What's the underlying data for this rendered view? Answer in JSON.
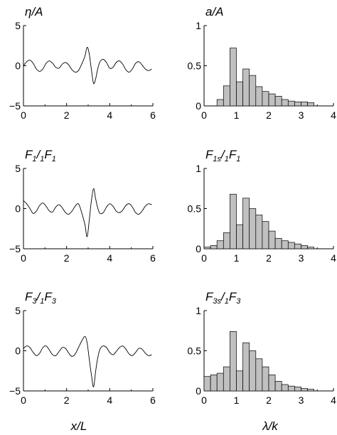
{
  "chart_data": [
    {
      "type": "line",
      "title": {
        "main": "η/A"
      },
      "xlim": [
        0,
        6
      ],
      "ylim": [
        -5,
        5
      ],
      "xticks": [
        "0",
        "2",
        "4",
        "6"
      ],
      "yticks": [
        "5",
        "0",
        "−5"
      ],
      "series": [
        {
          "x": [
            0,
            0.15,
            0.3,
            0.45,
            0.6,
            0.75,
            0.9,
            1.05,
            1.2,
            1.35,
            1.5,
            1.65,
            1.8,
            1.95,
            2.1,
            2.25,
            2.4,
            2.55,
            2.7,
            2.85,
            2.95,
            3.05,
            3.15,
            3.25,
            3.35,
            3.45,
            3.55,
            3.7,
            3.85,
            4.0,
            4.15,
            4.3,
            4.45,
            4.6,
            4.75,
            4.9,
            5.05,
            5.2,
            5.35,
            5.5,
            5.65,
            5.8,
            5.95
          ],
          "y": [
            0,
            0.5,
            0.7,
            0.3,
            -0.4,
            -0.7,
            -0.4,
            0.3,
            0.6,
            0.3,
            -0.2,
            -0.3,
            0.2,
            0.4,
            0.1,
            -0.5,
            -0.8,
            -0.6,
            0.2,
            1.2,
            2.3,
            1.5,
            -0.5,
            -2.2,
            -1.6,
            -0.3,
            0.5,
            0.8,
            0.4,
            -0.3,
            -0.2,
            0.4,
            0.6,
            0.2,
            -0.5,
            -0.8,
            -0.4,
            0.3,
            0.5,
            0.1,
            -0.4,
            -0.6,
            -0.4
          ]
        }
      ]
    },
    {
      "type": "bar",
      "title": {
        "main": "a/A"
      },
      "xlim": [
        0,
        4
      ],
      "ylim": [
        0,
        1
      ],
      "xticks": [
        "0",
        "1",
        "2",
        "3",
        "4"
      ],
      "yticks": [
        "1",
        "0.5",
        "0"
      ],
      "bin_width": 0.2,
      "bins": [
        0.0,
        0.2,
        0.4,
        0.6,
        0.8,
        1.0,
        1.2,
        1.4,
        1.6,
        1.8,
        2.0,
        2.2,
        2.4,
        2.6,
        2.8,
        3.0,
        3.2
      ],
      "values": [
        0,
        0,
        0.08,
        0.25,
        0.72,
        0.3,
        0.46,
        0.38,
        0.24,
        0.18,
        0.15,
        0.12,
        0.08,
        0.06,
        0.05,
        0.05,
        0.04
      ]
    },
    {
      "type": "line",
      "title": {
        "main": "F",
        "sub1": "1",
        "mid": "/",
        "pre2": "1",
        "main2": "F",
        "sub2": "1"
      },
      "xlim": [
        0,
        6
      ],
      "ylim": [
        -5,
        5
      ],
      "xticks": [
        "0",
        "2",
        "4",
        "6"
      ],
      "yticks": [
        "5",
        "0",
        "−5"
      ],
      "series": [
        {
          "x": [
            0,
            0.15,
            0.3,
            0.45,
            0.6,
            0.75,
            0.9,
            1.05,
            1.2,
            1.35,
            1.5,
            1.65,
            1.8,
            1.95,
            2.1,
            2.25,
            2.4,
            2.55,
            2.7,
            2.85,
            2.95,
            3.05,
            3.15,
            3.25,
            3.35,
            3.45,
            3.55,
            3.7,
            3.85,
            4.0,
            4.15,
            4.3,
            4.45,
            4.6,
            4.75,
            4.9,
            5.05,
            5.2,
            5.35,
            5.5,
            5.65,
            5.8,
            5.95
          ],
          "y": [
            1.0,
            0.6,
            0.0,
            -0.6,
            -0.3,
            0.4,
            0.7,
            0.3,
            -0.3,
            -0.4,
            0.2,
            0.5,
            0.1,
            -0.5,
            -0.7,
            -0.3,
            0.3,
            0.6,
            -0.5,
            -2.0,
            -3.5,
            -1.5,
            1.0,
            2.5,
            1.2,
            0.0,
            -0.6,
            -0.5,
            0.2,
            0.6,
            0.3,
            -0.3,
            -0.5,
            -0.2,
            0.4,
            0.6,
            0.2,
            -0.5,
            -0.7,
            -0.3,
            0.3,
            0.6,
            0.5
          ]
        }
      ]
    },
    {
      "type": "bar",
      "title": {
        "main": "F",
        "sub1": "1s",
        "mid": "/",
        "pre2": "1",
        "main2": "F",
        "sub2": "1"
      },
      "xlim": [
        0,
        4
      ],
      "ylim": [
        0,
        1
      ],
      "xticks": [
        "0",
        "1",
        "2",
        "3",
        "4"
      ],
      "yticks": [
        "1",
        "0.5",
        "0"
      ],
      "bin_width": 0.2,
      "bins": [
        0.0,
        0.2,
        0.4,
        0.6,
        0.8,
        1.0,
        1.2,
        1.4,
        1.6,
        1.8,
        2.0,
        2.2,
        2.4,
        2.6,
        2.8,
        3.0,
        3.2
      ],
      "values": [
        0.02,
        0.04,
        0.1,
        0.2,
        0.68,
        0.3,
        0.63,
        0.5,
        0.42,
        0.34,
        0.22,
        0.13,
        0.1,
        0.08,
        0.06,
        0.04,
        0.02
      ]
    },
    {
      "type": "line",
      "title": {
        "main": "F",
        "sub1": "3",
        "mid": "/",
        "pre2": "1",
        "main2": "F",
        "sub2": "3"
      },
      "xlim": [
        0,
        6
      ],
      "ylim": [
        -5,
        5
      ],
      "xticks": [
        "0",
        "2",
        "4",
        "6"
      ],
      "yticks": [
        "5",
        "0",
        "−5"
      ],
      "series": [
        {
          "x": [
            0,
            0.15,
            0.3,
            0.45,
            0.6,
            0.75,
            0.9,
            1.05,
            1.2,
            1.35,
            1.5,
            1.65,
            1.8,
            1.95,
            2.1,
            2.25,
            2.4,
            2.55,
            2.7,
            2.85,
            2.95,
            3.05,
            3.15,
            3.25,
            3.35,
            3.45,
            3.55,
            3.7,
            3.85,
            4.0,
            4.15,
            4.3,
            4.45,
            4.6,
            4.75,
            4.9,
            5.05,
            5.2,
            5.35,
            5.5,
            5.65,
            5.8,
            5.95
          ],
          "y": [
            0.3,
            0.6,
            0.4,
            -0.2,
            -0.6,
            -0.3,
            0.4,
            0.6,
            0.1,
            -0.5,
            -0.6,
            -0.1,
            0.4,
            0.3,
            -0.3,
            -0.7,
            -0.4,
            0.4,
            1.2,
            1.8,
            1.0,
            -1.0,
            -3.0,
            -4.5,
            -2.5,
            -0.8,
            0.2,
            0.6,
            0.4,
            -0.2,
            -0.5,
            -0.1,
            0.4,
            0.6,
            0.2,
            -0.4,
            -0.6,
            -0.2,
            0.3,
            0.2,
            -0.3,
            -0.6,
            -0.5
          ]
        }
      ]
    },
    {
      "type": "bar",
      "title": {
        "main": "F",
        "sub1": "3s",
        "mid": "/",
        "pre2": "1",
        "main2": "F",
        "sub2": "3"
      },
      "xlim": [
        0,
        4
      ],
      "ylim": [
        0,
        1
      ],
      "xticks": [
        "0",
        "1",
        "2",
        "3",
        "4"
      ],
      "yticks": [
        "1",
        "0.5",
        "0"
      ],
      "bin_width": 0.2,
      "bins": [
        0.0,
        0.2,
        0.4,
        0.6,
        0.8,
        1.0,
        1.2,
        1.4,
        1.6,
        1.8,
        2.0,
        2.2,
        2.4,
        2.6,
        2.8,
        3.0,
        3.2
      ],
      "values": [
        0.18,
        0.2,
        0.22,
        0.3,
        0.74,
        0.25,
        0.6,
        0.5,
        0.4,
        0.3,
        0.2,
        0.12,
        0.08,
        0.06,
        0.05,
        0.03,
        0.02
      ]
    }
  ],
  "xlabels": {
    "left": "x/L",
    "right": "λ/k"
  }
}
